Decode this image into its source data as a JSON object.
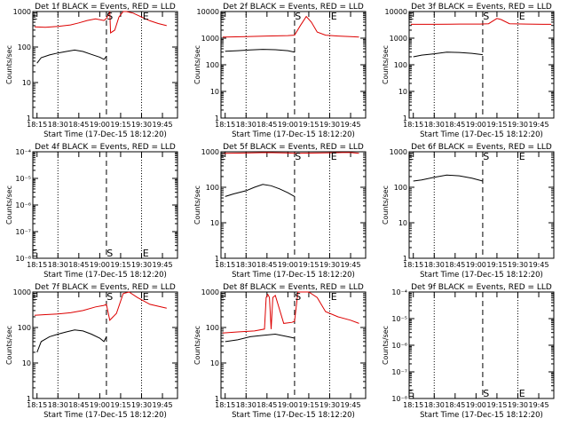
{
  "figure": {
    "xlabel": "Start Time (17-Dec-15 18:12:20)",
    "ylabel": "Counts/sec",
    "xticks": [
      "18:15",
      "18:30",
      "18:45",
      "19:00",
      "19:15",
      "19:30",
      "19:45"
    ],
    "marker_s": "S",
    "marker_e": "E"
  },
  "colors": {
    "events": "#000000",
    "lld": "#dd0000"
  },
  "chart_data": [
    {
      "type": "line",
      "title": "Det 1f BLACK = Events, RED = LLD",
      "yscale": "log",
      "ylim": [
        1,
        1000
      ],
      "yticks": [
        "1",
        "10",
        "100",
        "1000"
      ],
      "xlim": [
        18.2,
        19.93
      ],
      "dotted_x": [
        18.5,
        19.5
      ],
      "dashed_x": [
        19.08
      ],
      "markers": [
        {
          "label": "E",
          "x": 18.22,
          "y": 1000
        },
        {
          "label": "S",
          "x": 19.12,
          "y": 1000
        },
        {
          "label": "E",
          "x": 19.55,
          "y": 1000
        }
      ],
      "series": [
        {
          "role": "lld",
          "x": [
            18.22,
            18.35,
            18.5,
            18.65,
            18.75,
            18.85,
            18.95,
            19.05,
            19.08,
            19.12,
            19.13,
            19.18,
            19.23,
            19.28,
            19.32,
            19.4,
            19.5,
            19.6,
            19.7,
            19.8
          ],
          "y": [
            370,
            360,
            380,
            420,
            480,
            560,
            620,
            560,
            640,
            1000,
            250,
            300,
            700,
            1000,
            1000,
            900,
            700,
            550,
            460,
            400
          ]
        },
        {
          "role": "events",
          "x": [
            18.25,
            18.3,
            18.4,
            18.5,
            18.6,
            18.7,
            18.8,
            18.9,
            19.0,
            19.05,
            19.08
          ],
          "y": [
            35,
            50,
            60,
            68,
            75,
            82,
            75,
            62,
            52,
            45,
            55
          ]
        }
      ]
    },
    {
      "type": "line",
      "title": "Det 2f BLACK = Events, RED = LLD",
      "yscale": "log",
      "ylim": [
        1,
        10000
      ],
      "yticks": [
        "1",
        "10",
        "100",
        "1000",
        "10000"
      ],
      "xlim": [
        18.2,
        19.93
      ],
      "dotted_x": [
        18.5,
        19.5
      ],
      "dashed_x": [
        19.08
      ],
      "markers": [
        {
          "label": "E",
          "x": 18.22,
          "y": 10000
        },
        {
          "label": "S",
          "x": 19.12,
          "y": 10000
        },
        {
          "label": "E",
          "x": 19.55,
          "y": 10000
        }
      ],
      "series": [
        {
          "role": "lld",
          "x": [
            18.22,
            18.5,
            18.75,
            19.0,
            19.08,
            19.15,
            19.22,
            19.28,
            19.35,
            19.45,
            19.6,
            19.75,
            19.85
          ],
          "y": [
            1100,
            1150,
            1200,
            1250,
            1300,
            3000,
            6500,
            4000,
            1700,
            1300,
            1200,
            1150,
            1100
          ]
        },
        {
          "role": "events",
          "x": [
            18.25,
            18.4,
            18.55,
            18.7,
            18.85,
            19.0,
            19.08
          ],
          "y": [
            320,
            340,
            360,
            380,
            370,
            340,
            300
          ]
        }
      ]
    },
    {
      "type": "line",
      "title": "Det 3f BLACK = Events, RED = LLD",
      "yscale": "log",
      "ylim": [
        1,
        10000
      ],
      "yticks": [
        "1",
        "10",
        "100",
        "1000",
        "10000"
      ],
      "xlim": [
        18.2,
        19.93
      ],
      "dotted_x": [
        18.5,
        19.5
      ],
      "dashed_x": [
        19.08
      ],
      "markers": [
        {
          "label": "E",
          "x": 18.22,
          "y": 10000
        },
        {
          "label": "S",
          "x": 19.12,
          "y": 10000
        },
        {
          "label": "E",
          "x": 19.55,
          "y": 10000
        }
      ],
      "series": [
        {
          "role": "lld",
          "x": [
            18.22,
            18.5,
            18.8,
            19.05,
            19.15,
            19.25,
            19.3,
            19.4,
            19.6,
            19.8,
            19.9
          ],
          "y": [
            3300,
            3300,
            3400,
            3400,
            3500,
            5500,
            5000,
            3500,
            3400,
            3300,
            3300
          ]
        },
        {
          "role": "events",
          "x": [
            18.25,
            18.35,
            18.5,
            18.65,
            18.8,
            18.95,
            19.08
          ],
          "y": [
            200,
            230,
            260,
            300,
            290,
            270,
            240
          ]
        }
      ]
    },
    {
      "type": "line",
      "title": "Det 4f BLACK = Events, RED = LLD",
      "yscale": "log",
      "ylim": [
        1e-08,
        0.0001
      ],
      "yticks": [
        "10⁻⁸",
        "10⁻⁷",
        "10⁻⁶",
        "10⁻⁵",
        "10⁻⁴"
      ],
      "xlim": [
        18.2,
        19.93
      ],
      "dotted_x": [
        18.5,
        19.5
      ],
      "dashed_x": [
        19.08
      ],
      "markers": [
        {
          "label": "E",
          "x": 18.22,
          "y": 1e-08
        },
        {
          "label": "S",
          "x": 19.12,
          "y": 1e-08
        },
        {
          "label": "E",
          "x": 19.55,
          "y": 1e-08
        }
      ],
      "series": []
    },
    {
      "type": "line",
      "title": "Det 5f BLACK = Events, RED = LLD",
      "yscale": "log",
      "ylim": [
        1,
        1000
      ],
      "yticks": [
        "1",
        "10",
        "100",
        "1000"
      ],
      "xlim": [
        18.2,
        19.93
      ],
      "dotted_x": [
        18.5,
        19.5
      ],
      "dashed_x": [
        19.08
      ],
      "markers": [
        {
          "label": "E",
          "x": 18.22,
          "y": 1000
        },
        {
          "label": "S",
          "x": 19.12,
          "y": 1000
        },
        {
          "label": "E",
          "x": 19.55,
          "y": 1000
        }
      ],
      "series": [
        {
          "role": "lld",
          "x": [
            18.22,
            18.5,
            18.75,
            19.0,
            19.08,
            19.65,
            19.75,
            19.85
          ],
          "y": [
            900,
            920,
            950,
            920,
            900,
            950,
            950,
            900
          ]
        },
        {
          "role": "events",
          "x": [
            18.25,
            18.35,
            18.5,
            18.6,
            18.7,
            18.8,
            18.9,
            19.0,
            19.08
          ],
          "y": [
            55,
            65,
            80,
            100,
            120,
            110,
            90,
            70,
            55
          ]
        }
      ]
    },
    {
      "type": "line",
      "title": "Det 6f BLACK = Events, RED = LLD",
      "yscale": "log",
      "ylim": [
        1,
        1000
      ],
      "yticks": [
        "1",
        "10",
        "100",
        "1000"
      ],
      "xlim": [
        18.2,
        19.93
      ],
      "dotted_x": [
        18.5,
        19.5
      ],
      "dashed_x": [
        19.08
      ],
      "markers": [
        {
          "label": "E",
          "x": 18.22,
          "y": 1000
        },
        {
          "label": "S",
          "x": 19.12,
          "y": 1000
        },
        {
          "label": "E",
          "x": 19.55,
          "y": 1000
        }
      ],
      "series": [
        {
          "role": "events",
          "x": [
            18.25,
            18.35,
            18.5,
            18.65,
            18.8,
            18.95,
            19.08
          ],
          "y": [
            150,
            160,
            190,
            220,
            210,
            180,
            150
          ]
        }
      ]
    },
    {
      "type": "line",
      "title": "Det 7f BLACK = Events, RED = LLD",
      "yscale": "log",
      "ylim": [
        1,
        1000
      ],
      "yticks": [
        "1",
        "10",
        "100",
        "1000"
      ],
      "xlim": [
        18.2,
        19.93
      ],
      "dotted_x": [
        18.5,
        19.5
      ],
      "dashed_x": [
        19.08
      ],
      "markers": [
        {
          "label": "E",
          "x": 18.22,
          "y": 1000
        },
        {
          "label": "S",
          "x": 19.12,
          "y": 1000
        },
        {
          "label": "E",
          "x": 19.55,
          "y": 1000
        }
      ],
      "series": [
        {
          "role": "lld",
          "x": [
            18.22,
            18.35,
            18.5,
            18.65,
            18.8,
            18.95,
            19.05,
            19.08,
            19.12,
            19.2,
            19.28,
            19.35,
            19.45,
            19.6,
            19.8
          ],
          "y": [
            220,
            230,
            240,
            260,
            300,
            380,
            420,
            450,
            160,
            250,
            900,
            1000,
            700,
            450,
            350
          ]
        },
        {
          "role": "events",
          "x": [
            18.25,
            18.3,
            18.4,
            18.5,
            18.6,
            18.7,
            18.8,
            18.9,
            19.0,
            19.05,
            19.08
          ],
          "y": [
            20,
            40,
            55,
            65,
            75,
            85,
            80,
            65,
            50,
            40,
            55
          ]
        }
      ]
    },
    {
      "type": "line",
      "title": "Det 8f BLACK = Events, RED = LLD",
      "yscale": "log",
      "ylim": [
        1,
        1000
      ],
      "yticks": [
        "1",
        "10",
        "100",
        "1000"
      ],
      "xlim": [
        18.2,
        19.93
      ],
      "dotted_x": [
        18.5,
        19.5
      ],
      "dashed_x": [
        19.08
      ],
      "markers": [
        {
          "label": "E",
          "x": 18.22,
          "y": 1000
        },
        {
          "label": "S",
          "x": 19.12,
          "y": 1000
        },
        {
          "label": "E",
          "x": 19.55,
          "y": 1000
        }
      ],
      "series": [
        {
          "role": "lld",
          "x": [
            18.22,
            18.4,
            18.6,
            18.72,
            18.74,
            18.76,
            18.78,
            18.8,
            18.82,
            18.85,
            18.95,
            19.05,
            19.08,
            19.12,
            19.25,
            19.35,
            19.45,
            19.6,
            19.75,
            19.85
          ],
          "y": [
            70,
            75,
            80,
            90,
            700,
            850,
            700,
            90,
            700,
            800,
            130,
            140,
            150,
            1000,
            1000,
            700,
            280,
            200,
            160,
            130
          ]
        },
        {
          "role": "events",
          "x": [
            18.25,
            18.4,
            18.55,
            18.7,
            18.85,
            19.0,
            19.08
          ],
          "y": [
            40,
            45,
            55,
            60,
            65,
            55,
            50
          ]
        }
      ]
    },
    {
      "type": "line",
      "title": "Det 9f BLACK = Events, RED = LLD",
      "yscale": "log",
      "ylim": [
        1e-08,
        0.0001
      ],
      "yticks": [
        "10⁻⁸",
        "10⁻⁷",
        "10⁻⁶",
        "10⁻⁵",
        "10⁻⁴"
      ],
      "xlim": [
        18.2,
        19.93
      ],
      "dotted_x": [
        18.5,
        19.5
      ],
      "dashed_x": [
        19.08
      ],
      "markers": [
        {
          "label": "E",
          "x": 18.22,
          "y": 1e-08
        },
        {
          "label": "S",
          "x": 19.12,
          "y": 1e-08
        },
        {
          "label": "E",
          "x": 19.55,
          "y": 1e-08
        }
      ],
      "series": []
    }
  ]
}
